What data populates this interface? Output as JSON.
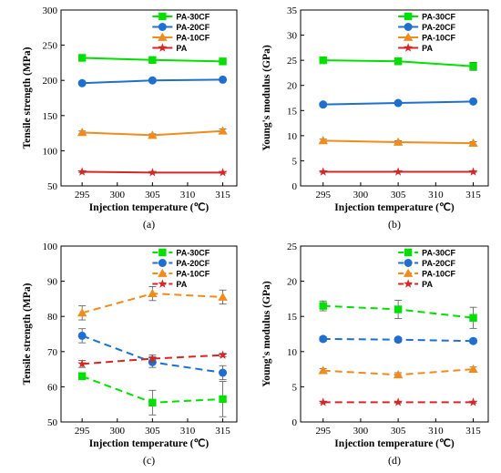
{
  "chart_data": [
    {
      "type": "line",
      "panel": "(a)",
      "xlabel": "Injection temperature (℃)",
      "ylabel": "Tensile strength (MPa)",
      "x": [
        295,
        305,
        315
      ],
      "xlim": [
        292,
        317
      ],
      "xticks": [
        295,
        300,
        305,
        310,
        315
      ],
      "ylim": [
        50,
        300
      ],
      "yticks": [
        50,
        100,
        150,
        200,
        250,
        300
      ],
      "line_style": "solid",
      "legend_position": "top-right",
      "series": [
        {
          "name": "PA-30CF",
          "color": "#00e000",
          "marker": "square",
          "values": [
            232,
            229,
            227
          ],
          "errors": [
            2,
            2,
            3
          ]
        },
        {
          "name": "PA-20CF",
          "color": "#1f6fd1",
          "marker": "circle",
          "values": [
            196,
            200,
            201
          ],
          "errors": [
            2,
            2,
            2
          ]
        },
        {
          "name": "PA-10CF",
          "color": "#f08c1c",
          "marker": "triangle",
          "values": [
            126,
            122,
            128
          ],
          "errors": [
            2,
            2,
            3
          ]
        },
        {
          "name": "PA",
          "color": "#d62728",
          "marker": "star",
          "values": [
            70,
            69,
            69
          ],
          "errors": [
            1,
            1,
            1
          ]
        }
      ]
    },
    {
      "type": "line",
      "panel": "(b)",
      "xlabel": "Injection temperature (℃)",
      "ylabel": "Young's modulus (GPa)",
      "x": [
        295,
        305,
        315
      ],
      "xlim": [
        292,
        317
      ],
      "xticks": [
        295,
        300,
        305,
        310,
        315
      ],
      "ylim": [
        0,
        35
      ],
      "yticks": [
        0,
        5,
        10,
        15,
        20,
        25,
        30,
        35
      ],
      "line_style": "solid",
      "legend_position": "top-right",
      "series": [
        {
          "name": "PA-30CF",
          "color": "#00e000",
          "marker": "square",
          "values": [
            25,
            24.8,
            23.8
          ],
          "errors": [
            0.5,
            0.7,
            0.8
          ]
        },
        {
          "name": "PA-20CF",
          "color": "#1f6fd1",
          "marker": "circle",
          "values": [
            16.2,
            16.5,
            16.8
          ],
          "errors": [
            0.3,
            0.3,
            0.3
          ]
        },
        {
          "name": "PA-10CF",
          "color": "#f08c1c",
          "marker": "triangle",
          "values": [
            9.0,
            8.7,
            8.5
          ],
          "errors": [
            0.3,
            0.3,
            0.3
          ]
        },
        {
          "name": "PA",
          "color": "#d62728",
          "marker": "star",
          "values": [
            2.8,
            2.8,
            2.8
          ],
          "errors": [
            0.1,
            0.1,
            0.1
          ]
        }
      ]
    },
    {
      "type": "line",
      "panel": "(c)",
      "xlabel": "Injection temperature (℃)",
      "ylabel": "Tensile strength (MPa)",
      "x": [
        295,
        305,
        315
      ],
      "xlim": [
        292,
        317
      ],
      "xticks": [
        295,
        300,
        305,
        310,
        315
      ],
      "ylim": [
        50,
        100
      ],
      "yticks": [
        50,
        60,
        70,
        80,
        90,
        100
      ],
      "line_style": "dashed",
      "legend_position": "top-right",
      "series": [
        {
          "name": "PA-30CF",
          "color": "#00e000",
          "marker": "square",
          "values": [
            63,
            55.5,
            56.5
          ],
          "errors": [
            1,
            3.5,
            5
          ]
        },
        {
          "name": "PA-20CF",
          "color": "#1f6fd1",
          "marker": "circle",
          "values": [
            74.5,
            67,
            64
          ],
          "errors": [
            2,
            1.5,
            2
          ]
        },
        {
          "name": "PA-10CF",
          "color": "#f08c1c",
          "marker": "triangle",
          "values": [
            81,
            86.5,
            85.5
          ],
          "errors": [
            2,
            2,
            2
          ]
        },
        {
          "name": "PA",
          "color": "#d62728",
          "marker": "star",
          "values": [
            66.5,
            68,
            69
          ],
          "errors": [
            1,
            1,
            0.5
          ]
        }
      ]
    },
    {
      "type": "line",
      "panel": "(d)",
      "xlabel": "Injection temperature (℃)",
      "ylabel": "Young's modulus (GPa)",
      "x": [
        295,
        305,
        315
      ],
      "xlim": [
        292,
        317
      ],
      "xticks": [
        295,
        300,
        305,
        310,
        315
      ],
      "ylim": [
        0,
        25
      ],
      "yticks": [
        0,
        5,
        10,
        15,
        20,
        25
      ],
      "line_style": "dashed",
      "legend_position": "top-right",
      "series": [
        {
          "name": "PA-30CF",
          "color": "#00e000",
          "marker": "square",
          "values": [
            16.5,
            16.0,
            14.8
          ],
          "errors": [
            0.7,
            1.3,
            1.5
          ]
        },
        {
          "name": "PA-20CF",
          "color": "#1f6fd1",
          "marker": "circle",
          "values": [
            11.8,
            11.7,
            11.5
          ],
          "errors": [
            0.3,
            0.3,
            0.3
          ]
        },
        {
          "name": "PA-10CF",
          "color": "#f08c1c",
          "marker": "triangle",
          "values": [
            7.3,
            6.7,
            7.5
          ],
          "errors": [
            0.3,
            0.3,
            0.3
          ]
        },
        {
          "name": "PA",
          "color": "#d62728",
          "marker": "star",
          "values": [
            2.8,
            2.8,
            2.8
          ],
          "errors": [
            0.1,
            0.1,
            0.1
          ]
        }
      ]
    }
  ]
}
